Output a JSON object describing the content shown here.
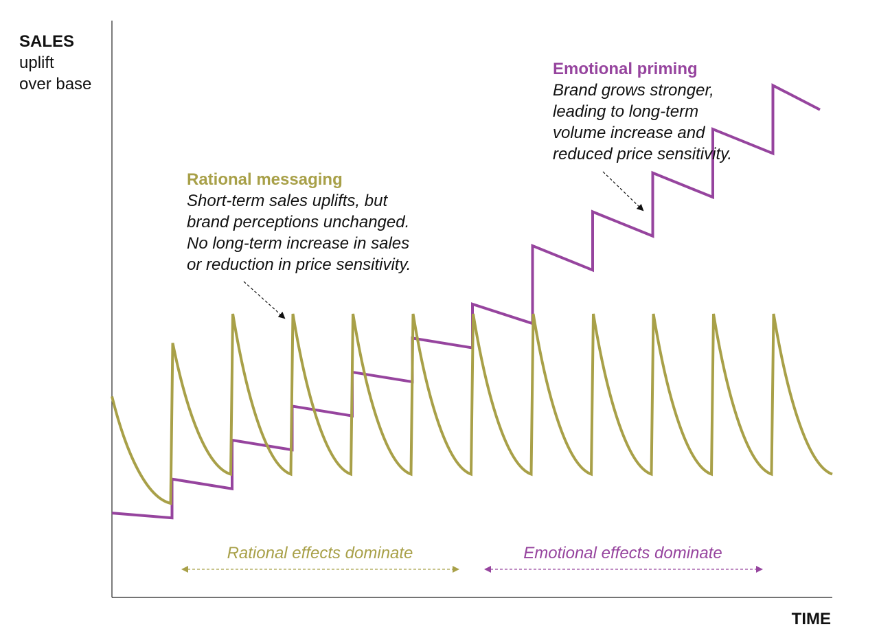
{
  "chart_data": {
    "type": "line",
    "title": "",
    "ylabel_lines": [
      "SALES",
      "uplift",
      "over base"
    ],
    "xlabel": "TIME",
    "grid": false,
    "ylim": [
      0,
      100
    ],
    "colors": {
      "rational": "#a8a048",
      "emotional": "#96449e",
      "axis": "#222222",
      "text": "#111111"
    },
    "series": [
      {
        "key": "rational",
        "note": "sawtooth: spike then decay each period",
        "x": [
          0,
          1,
          2,
          3,
          4,
          5,
          6,
          7,
          8,
          9,
          10,
          11,
          12
        ],
        "peaks": [
          null,
          33,
          39,
          39,
          39,
          39,
          39,
          39,
          39,
          39,
          39,
          39,
          39
        ],
        "troughs": [
          22,
          0,
          6,
          6,
          6,
          6,
          6,
          6,
          6,
          6,
          6,
          6,
          6
        ],
        "start": 22,
        "end": 6
      },
      {
        "key": "emotional",
        "note": "stair-step: jump up each period then slight decline",
        "x_start": [
          0,
          1,
          2,
          3,
          4,
          5,
          6,
          7,
          8,
          9,
          10,
          11
        ],
        "start_values": [
          -2,
          5,
          13,
          20,
          27,
          34,
          41,
          53,
          60,
          68,
          77,
          86
        ],
        "end_values": [
          -3,
          3,
          11,
          18,
          25,
          32,
          37,
          48,
          55,
          63,
          72,
          81
        ]
      }
    ],
    "annotations": {
      "rational": {
        "title": "Rational messaging",
        "lines": [
          "Short-term sales uplifts, but",
          "brand perceptions unchanged.",
          "No long-term increase in sales",
          "or reduction in price sensitivity."
        ]
      },
      "emotional": {
        "title": "Emotional priming",
        "lines": [
          "Brand grows stronger,",
          "leading to long-term",
          "volume increase and",
          "reduced price sensitivity."
        ]
      }
    },
    "bands": [
      {
        "key": "rational",
        "label": "Rational effects dominate",
        "x_range": [
          1.2,
          5.8
        ]
      },
      {
        "key": "emotional",
        "label": "Emotional effects dominate",
        "x_range": [
          6.2,
          10.8
        ]
      }
    ]
  }
}
